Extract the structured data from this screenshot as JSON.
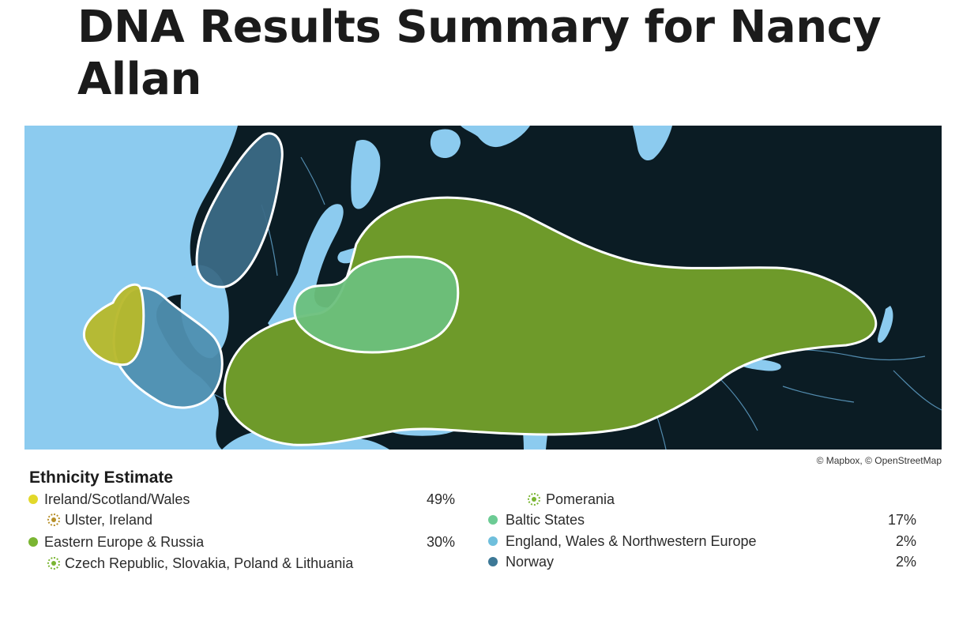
{
  "page": {
    "title": "DNA Results Summary for Nancy Allan"
  },
  "map": {
    "attribution": "© Mapbox, © OpenStreetMap",
    "colors": {
      "water": "#8ccbef",
      "land": "#0b1c24",
      "border": "#5f9fc7",
      "outline": "#ffffff"
    },
    "regions": [
      {
        "id": "ireland-scotland-wales",
        "color": "#b7b82a"
      },
      {
        "id": "eastern-europe-russia",
        "color": "#6e9a2a"
      },
      {
        "id": "baltic-states",
        "color": "#6cc07c"
      },
      {
        "id": "england-wales-nw-europe",
        "color": "#4f8fb0"
      },
      {
        "id": "norway",
        "color": "#3b6a86"
      }
    ]
  },
  "legend": {
    "title": "Ethnicity Estimate",
    "items": [
      {
        "label": "Ireland/Scotland/Wales",
        "percent": "49%",
        "color": "#e2d82a",
        "marker": "dot"
      },
      {
        "label": "Ulster, Ireland",
        "percent": "",
        "color": "#b78f2a",
        "marker": "ring"
      },
      {
        "label": "Eastern Europe & Russia",
        "percent": "30%",
        "color": "#7ab532",
        "marker": "dot"
      },
      {
        "label": "Czech Republic, Slovakia, Poland & Lithuania",
        "percent": "",
        "color": "#7ab532",
        "marker": "ring"
      },
      {
        "label": "Pomerania",
        "percent": "",
        "color": "#7ab532",
        "marker": "ring"
      },
      {
        "label": "Baltic States",
        "percent": "17%",
        "color": "#6ccb94",
        "marker": "dot"
      },
      {
        "label": "England, Wales & Northwestern Europe",
        "percent": "2%",
        "color": "#6fbfdc",
        "marker": "dot"
      },
      {
        "label": "Norway",
        "percent": "2%",
        "color": "#3d7896",
        "marker": "dot"
      }
    ]
  }
}
